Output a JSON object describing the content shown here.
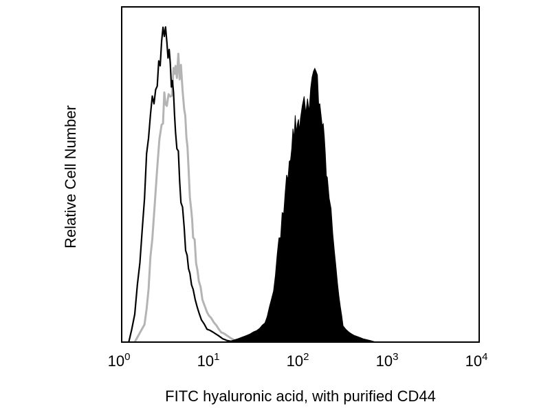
{
  "chart_data": {
    "type": "area",
    "title": "",
    "xlabel": "FITC hyaluronic acid, with purified CD44",
    "ylabel": "Relative Cell Number",
    "x_scale": "log",
    "xlim": [
      1,
      10000
    ],
    "ylim": [
      0,
      100
    ],
    "y_ticks_shown": false,
    "grid": false,
    "legend": "none",
    "x_ticks": [
      {
        "value": 1,
        "base": "10",
        "exp": "0"
      },
      {
        "value": 10,
        "base": "10",
        "exp": "1"
      },
      {
        "value": 100,
        "base": "10",
        "exp": "2"
      },
      {
        "value": 1000,
        "base": "10",
        "exp": "3"
      },
      {
        "value": 10000,
        "base": "10",
        "exp": "4"
      }
    ],
    "series": [
      {
        "style": "gray-outline",
        "color": "#b4b4b4",
        "x": [
          1.4,
          1.8,
          2.0,
          2.2,
          2.5,
          2.8,
          3.0,
          3.2,
          3.5,
          3.8,
          4.0,
          4.3,
          4.6,
          5.0,
          5.3,
          5.6,
          6.0,
          6.3,
          6.8,
          7.3,
          8.0,
          9.0,
          10.0,
          11.5,
          13.0,
          15.0,
          17.0,
          20.0
        ],
        "y": [
          0,
          5,
          16,
          32,
          52,
          67,
          71,
          73,
          75,
          80,
          84,
          83,
          80,
          72,
          62,
          51,
          41,
          33,
          24,
          18,
          13,
          9,
          7,
          5,
          3,
          2,
          1,
          0
        ]
      },
      {
        "style": "black-outline",
        "color": "#000000",
        "x": [
          1.2,
          1.4,
          1.6,
          1.8,
          2.0,
          2.2,
          2.4,
          2.6,
          2.8,
          3.0,
          3.2,
          3.4,
          3.6,
          3.8,
          4.0,
          4.3,
          4.6,
          5.0,
          5.4,
          5.8,
          6.3,
          7.0,
          7.8,
          9.0,
          10.5,
          12.0,
          13.5,
          15.0,
          17.0,
          20.0
        ],
        "y": [
          0,
          8,
          25,
          45,
          63,
          72,
          76,
          83,
          88,
          93,
          91,
          87,
          80,
          73,
          63,
          54,
          44,
          33,
          26,
          20,
          15,
          10,
          7,
          4,
          3,
          2,
          1,
          0.5,
          0.2,
          0
        ]
      },
      {
        "style": "black-filled",
        "color": "#000000",
        "x": [
          15,
          20,
          25,
          30,
          35,
          40,
          45,
          50,
          55,
          60,
          65,
          70,
          75,
          80,
          85,
          90,
          95,
          100,
          110,
          120,
          130,
          140,
          150,
          160,
          170,
          180,
          190,
          200,
          220,
          240,
          260,
          280,
          300,
          350,
          400,
          450,
          500,
          600,
          700
        ],
        "y": [
          0,
          1,
          2,
          3,
          4,
          6,
          10,
          16,
          25,
          33,
          40,
          48,
          55,
          60,
          63,
          65,
          66,
          68,
          70,
          72,
          75,
          78,
          80,
          73,
          69,
          62,
          55,
          48,
          38,
          28,
          18,
          10,
          5,
          3,
          2,
          1.5,
          1,
          0.5,
          0
        ]
      }
    ]
  }
}
